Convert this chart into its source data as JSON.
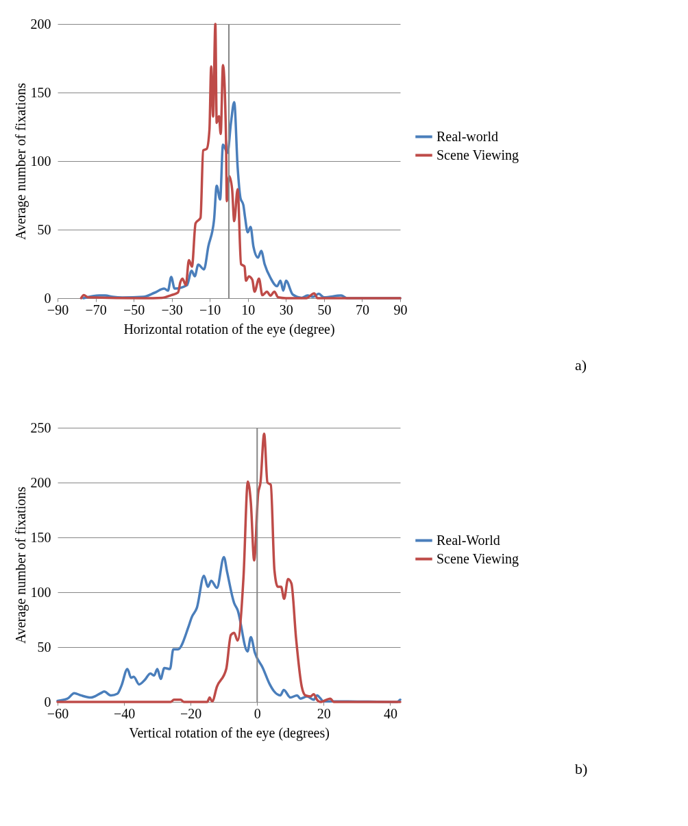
{
  "chart_data": [
    {
      "type": "line",
      "xlabel": "Horizontal rotation of the eye (degree)",
      "ylabel": "Average number of fixations",
      "xlim": [
        -90,
        90
      ],
      "xticks": [
        -90,
        -70,
        -50,
        -30,
        -10,
        10,
        30,
        50,
        70,
        90
      ],
      "ylim": [
        0,
        200
      ],
      "yticks": [
        0,
        50,
        100,
        150,
        200
      ],
      "grid": "y",
      "legend": "right",
      "marker": "none",
      "line_style": "solid",
      "annotations": [
        "a)"
      ],
      "ref_lines": [
        {
          "axis": "x",
          "value": 0,
          "color": "#868686"
        }
      ],
      "series": [
        {
          "name": "Real-world",
          "color": "#4a7ebb",
          "x": [
            -76.4,
            -68,
            -65,
            -61,
            -56,
            -45,
            -39,
            -34,
            -32,
            -30.3,
            -28.5,
            -22,
            -19.6,
            -17.9,
            -16.1,
            -13.1,
            -10.8,
            -7.8,
            -6.4,
            -4.6,
            -3.1,
            -0.7,
            1.1,
            2.8,
            4.6,
            6.1,
            7.6,
            8.5,
            9.9,
            11.4,
            12.9,
            15.3,
            17,
            18.8,
            21.8,
            25.3,
            27.1,
            28.6,
            30,
            33.6,
            38.3,
            41.3,
            44.2,
            47.2,
            50,
            59,
            62,
            90
          ],
          "values": [
            0,
            2,
            2,
            1,
            0.5,
            1,
            4,
            7,
            5.5,
            15.5,
            7,
            9.5,
            20,
            16,
            24.5,
            21,
            37.7,
            57,
            82,
            72,
            112,
            106,
            128,
            143,
            95.6,
            73,
            68,
            59,
            48,
            52,
            37.7,
            29.6,
            34.5,
            24.8,
            15,
            8.7,
            12.7,
            5.5,
            12.7,
            2.6,
            0.3,
            2,
            1,
            3.2,
            0.6,
            2,
            0,
            0
          ]
        },
        {
          "name": "Scene Viewing",
          "color": "#be4b48",
          "x": [
            -77.6,
            -76.2,
            -74,
            -44.5,
            -35,
            -30.3,
            -26.7,
            -25.5,
            -24.4,
            -22.6,
            -21,
            -19.4,
            -17.5,
            -14.9,
            -13.5,
            -11.6,
            -10.2,
            -9.3,
            -8.3,
            -7.1,
            -6.4,
            -5.2,
            -4.3,
            -3.1,
            -1.5,
            -1.1,
            0.2,
            1.7,
            2.8,
            4.6,
            6.4,
            8.2,
            9,
            10.5,
            12.3,
            13.5,
            15.8,
            17.6,
            20,
            21.8,
            23.9,
            25.9,
            30,
            40.7,
            44.8,
            46.6,
            90
          ],
          "values": [
            0,
            2.2,
            0.6,
            0,
            0.3,
            2.2,
            4.2,
            11.6,
            14.3,
            9.5,
            27.7,
            23,
            54.6,
            58.6,
            107.7,
            109,
            123,
            169,
            132.5,
            200,
            127.9,
            132.7,
            119.8,
            170,
            116.7,
            70.7,
            89,
            79.5,
            56.2,
            79.5,
            24.8,
            23.2,
            12.7,
            15.9,
            13.5,
            4.7,
            14.3,
            2.2,
            4.7,
            1.9,
            4.7,
            0.6,
            0,
            0,
            3.5,
            0,
            0
          ]
        }
      ]
    },
    {
      "type": "line",
      "xlabel": "Vertical rotation  of the eye (degrees)",
      "ylabel": "Average number of fixations",
      "xlim": [
        -60,
        43
      ],
      "xticks": [
        -60,
        -40,
        -20,
        0,
        20,
        40
      ],
      "ylim": [
        0,
        250
      ],
      "yticks": [
        0,
        50,
        100,
        150,
        200,
        250
      ],
      "grid": "y",
      "legend": "right",
      "marker": "none",
      "line_style": "solid",
      "annotations": [
        "b)"
      ],
      "ref_lines": [
        {
          "axis": "x",
          "value": 0,
          "color": "#868686"
        }
      ],
      "series": [
        {
          "name": "Real-World",
          "color": "#4a7ebb",
          "x": [
            -60,
            -57,
            -55,
            -53,
            -50,
            -47,
            -46,
            -44,
            -42,
            -40.8,
            -39,
            -37.9,
            -37.1,
            -35.5,
            -33.8,
            -32.1,
            -31,
            -30,
            -29,
            -27.9,
            -26.2,
            -25.2,
            -23.8,
            -20.7,
            -19.7,
            -18.1,
            -16,
            -14.8,
            -13.8,
            -12.1,
            -10,
            -9,
            -6.9,
            -5.9,
            -2.9,
            -1.9,
            -0.7,
            1.7,
            3.8,
            5,
            7,
            8,
            10,
            12,
            13,
            15,
            17,
            18,
            20,
            25,
            42,
            43
          ],
          "values": [
            1,
            3,
            8,
            6,
            4,
            8,
            9.5,
            6,
            7.5,
            14.8,
            30,
            22,
            23,
            16,
            20,
            26,
            24,
            30,
            21,
            31,
            30,
            48,
            48,
            68,
            77,
            86,
            115,
            105,
            110.5,
            104,
            132,
            118,
            90,
            84,
            46,
            59,
            45,
            31,
            16,
            10,
            6,
            11,
            4,
            6,
            3,
            5,
            2,
            6,
            0.5,
            0.5,
            0,
            2
          ]
        },
        {
          "name": "Scene Viewing",
          "color": "#be4b48",
          "x": [
            -60,
            -26,
            -25,
            -24,
            -23,
            -22,
            -15,
            -14.3,
            -13.5,
            -12.1,
            -9.3,
            -7.9,
            -6.9,
            -5.9,
            -4.1,
            -2.8,
            -1.9,
            -0.9,
            0.3,
            1,
            2.1,
            3.1,
            4.1,
            5.2,
            6.2,
            7.2,
            8.1,
            9.3,
            10.3,
            11.7,
            13.4,
            14.5,
            16,
            17,
            18,
            19,
            22,
            23,
            43
          ],
          "values": [
            0,
            0,
            2,
            2,
            2,
            0,
            0,
            4,
            0.5,
            13.8,
            30,
            61,
            63,
            56,
            114,
            201,
            182,
            129,
            190,
            200,
            244.5,
            200,
            198,
            120,
            105,
            105,
            94,
            112,
            108,
            58,
            14,
            6,
            5,
            7,
            2,
            0,
            3,
            0,
            0
          ]
        }
      ]
    }
  ]
}
